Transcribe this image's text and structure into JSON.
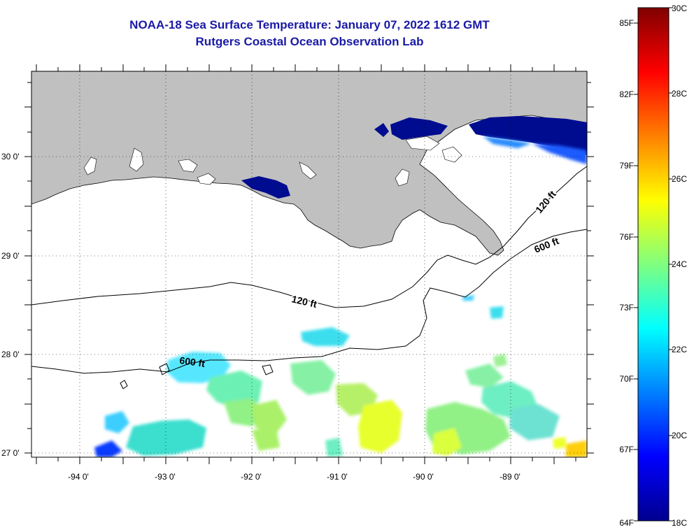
{
  "header": {
    "title": "NOAA-18 Sea Surface Temperature:  January 07, 2022 1612 GMT",
    "subtitle": "Rutgers Coastal Ocean Observation Lab"
  },
  "map": {
    "lon_labels": [
      "-94 0'",
      "-93 0'",
      "-92 0'",
      "-91 0'",
      "-90 0'",
      "-89 0'"
    ],
    "lat_labels": [
      "30 0'",
      "29 0'",
      "28 0'",
      "27 0'"
    ],
    "contours": [
      {
        "label": "120 ft"
      },
      {
        "label": "120 ft"
      },
      {
        "label": "600 ft"
      },
      {
        "label": "600 ft"
      }
    ],
    "colors": {
      "land": "#c0c0c0",
      "ocean": "#ffffff"
    }
  },
  "colorbar": {
    "fahrenheit": [
      "85F",
      "82F",
      "79F",
      "76F",
      "73F",
      "70F",
      "67F",
      "64F"
    ],
    "celsius": [
      "30C",
      "28C",
      "26C",
      "24C",
      "22C",
      "20C",
      "18C"
    ],
    "colormap": "jet"
  }
}
